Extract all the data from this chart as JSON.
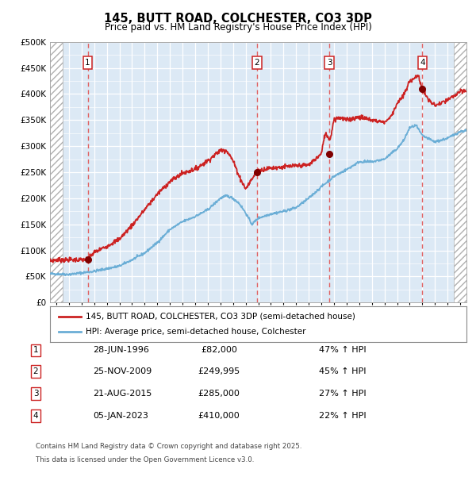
{
  "title": "145, BUTT ROAD, COLCHESTER, CO3 3DP",
  "subtitle": "Price paid vs. HM Land Registry's House Price Index (HPI)",
  "ylim": [
    0,
    500000
  ],
  "yticks": [
    0,
    50000,
    100000,
    150000,
    200000,
    250000,
    300000,
    350000,
    400000,
    450000,
    500000
  ],
  "ytick_labels": [
    "£0",
    "£50K",
    "£100K",
    "£150K",
    "£200K",
    "£250K",
    "£300K",
    "£350K",
    "£400K",
    "£450K",
    "£500K"
  ],
  "xlim_start": 1993.5,
  "xlim_end": 2026.5,
  "bg_color": "#dce9f5",
  "grid_color": "#ffffff",
  "hpi_color": "#6baed6",
  "price_color": "#cc2222",
  "marker_color": "#800000",
  "dashed_line_color": "#e06060",
  "legend_label_price": "145, BUTT ROAD, COLCHESTER, CO3 3DP (semi-detached house)",
  "legend_label_hpi": "HPI: Average price, semi-detached house, Colchester",
  "transactions": [
    {
      "num": 1,
      "date": "28-JUN-1996",
      "price": 82000,
      "price_str": "£82,000",
      "year": 1996.49,
      "pct": "47% ↑ HPI"
    },
    {
      "num": 2,
      "date": "25-NOV-2009",
      "price": 249995,
      "price_str": "£249,995",
      "year": 2009.9,
      "pct": "45% ↑ HPI"
    },
    {
      "num": 3,
      "date": "21-AUG-2015",
      "price": 285000,
      "price_str": "£285,000",
      "year": 2015.64,
      "pct": "27% ↑ HPI"
    },
    {
      "num": 4,
      "date": "05-JAN-2023",
      "price": 410000,
      "price_str": "£410,000",
      "year": 2023.01,
      "pct": "22% ↑ HPI"
    }
  ],
  "footer_line1": "Contains HM Land Registry data © Crown copyright and database right 2025.",
  "footer_line2": "This data is licensed under the Open Government Licence v3.0.",
  "xtick_years": [
    1994,
    1995,
    1996,
    1997,
    1998,
    1999,
    2000,
    2001,
    2002,
    2003,
    2004,
    2005,
    2006,
    2007,
    2008,
    2009,
    2010,
    2011,
    2012,
    2013,
    2014,
    2015,
    2016,
    2017,
    2018,
    2019,
    2020,
    2021,
    2022,
    2023,
    2024,
    2025,
    2026
  ],
  "hatch_left_end": 1994.5,
  "hatch_right_start": 2025.5
}
